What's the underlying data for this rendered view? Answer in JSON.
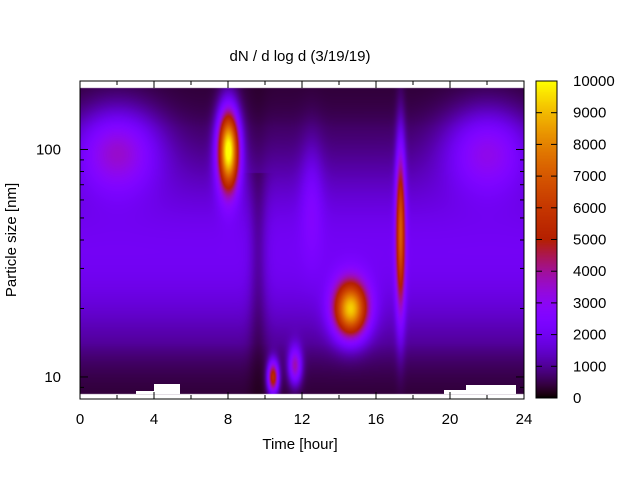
{
  "chart_data": {
    "type": "heatmap",
    "title": "dN / d log d (3/19/19)",
    "xlabel": "Time [hour]",
    "ylabel": "Particle size [nm]",
    "xlim": [
      0,
      24
    ],
    "ylim": [
      8,
      200
    ],
    "y_scale": "log",
    "x_ticks": [
      "0",
      "4",
      "8",
      "12",
      "16",
      "20",
      "24"
    ],
    "x_tick_values": [
      0,
      4,
      8,
      12,
      16,
      20,
      24
    ],
    "y_ticks": [
      "10",
      "100"
    ],
    "y_tick_values": [
      10,
      100
    ],
    "colorbar": {
      "range": [
        0,
        10000
      ],
      "ticks": [
        "0",
        "1000",
        "2000",
        "3000",
        "4000",
        "5000",
        "6000",
        "7000",
        "8000",
        "9000",
        "10000"
      ],
      "tick_values": [
        0,
        1000,
        2000,
        3000,
        4000,
        5000,
        6000,
        7000,
        8000,
        9000,
        10000
      ],
      "colormap": "gnuplot-pm3d"
    },
    "features": [
      {
        "time_hour": 8.0,
        "size_nm": 100,
        "peak": 9500
      },
      {
        "time_hour": 14.5,
        "size_nm": 20,
        "peak": 8000
      },
      {
        "time_hour": 17.3,
        "size_nm": 40,
        "peak": 6500
      },
      {
        "time_hour": 10.4,
        "size_nm": 10,
        "peak": 5500
      },
      {
        "time_hour": 2.0,
        "size_nm": 100,
        "peak": 4200
      },
      {
        "time_hour": 22.0,
        "size_nm": 100,
        "peak": 3900
      }
    ],
    "grid": false,
    "legend": "none"
  }
}
